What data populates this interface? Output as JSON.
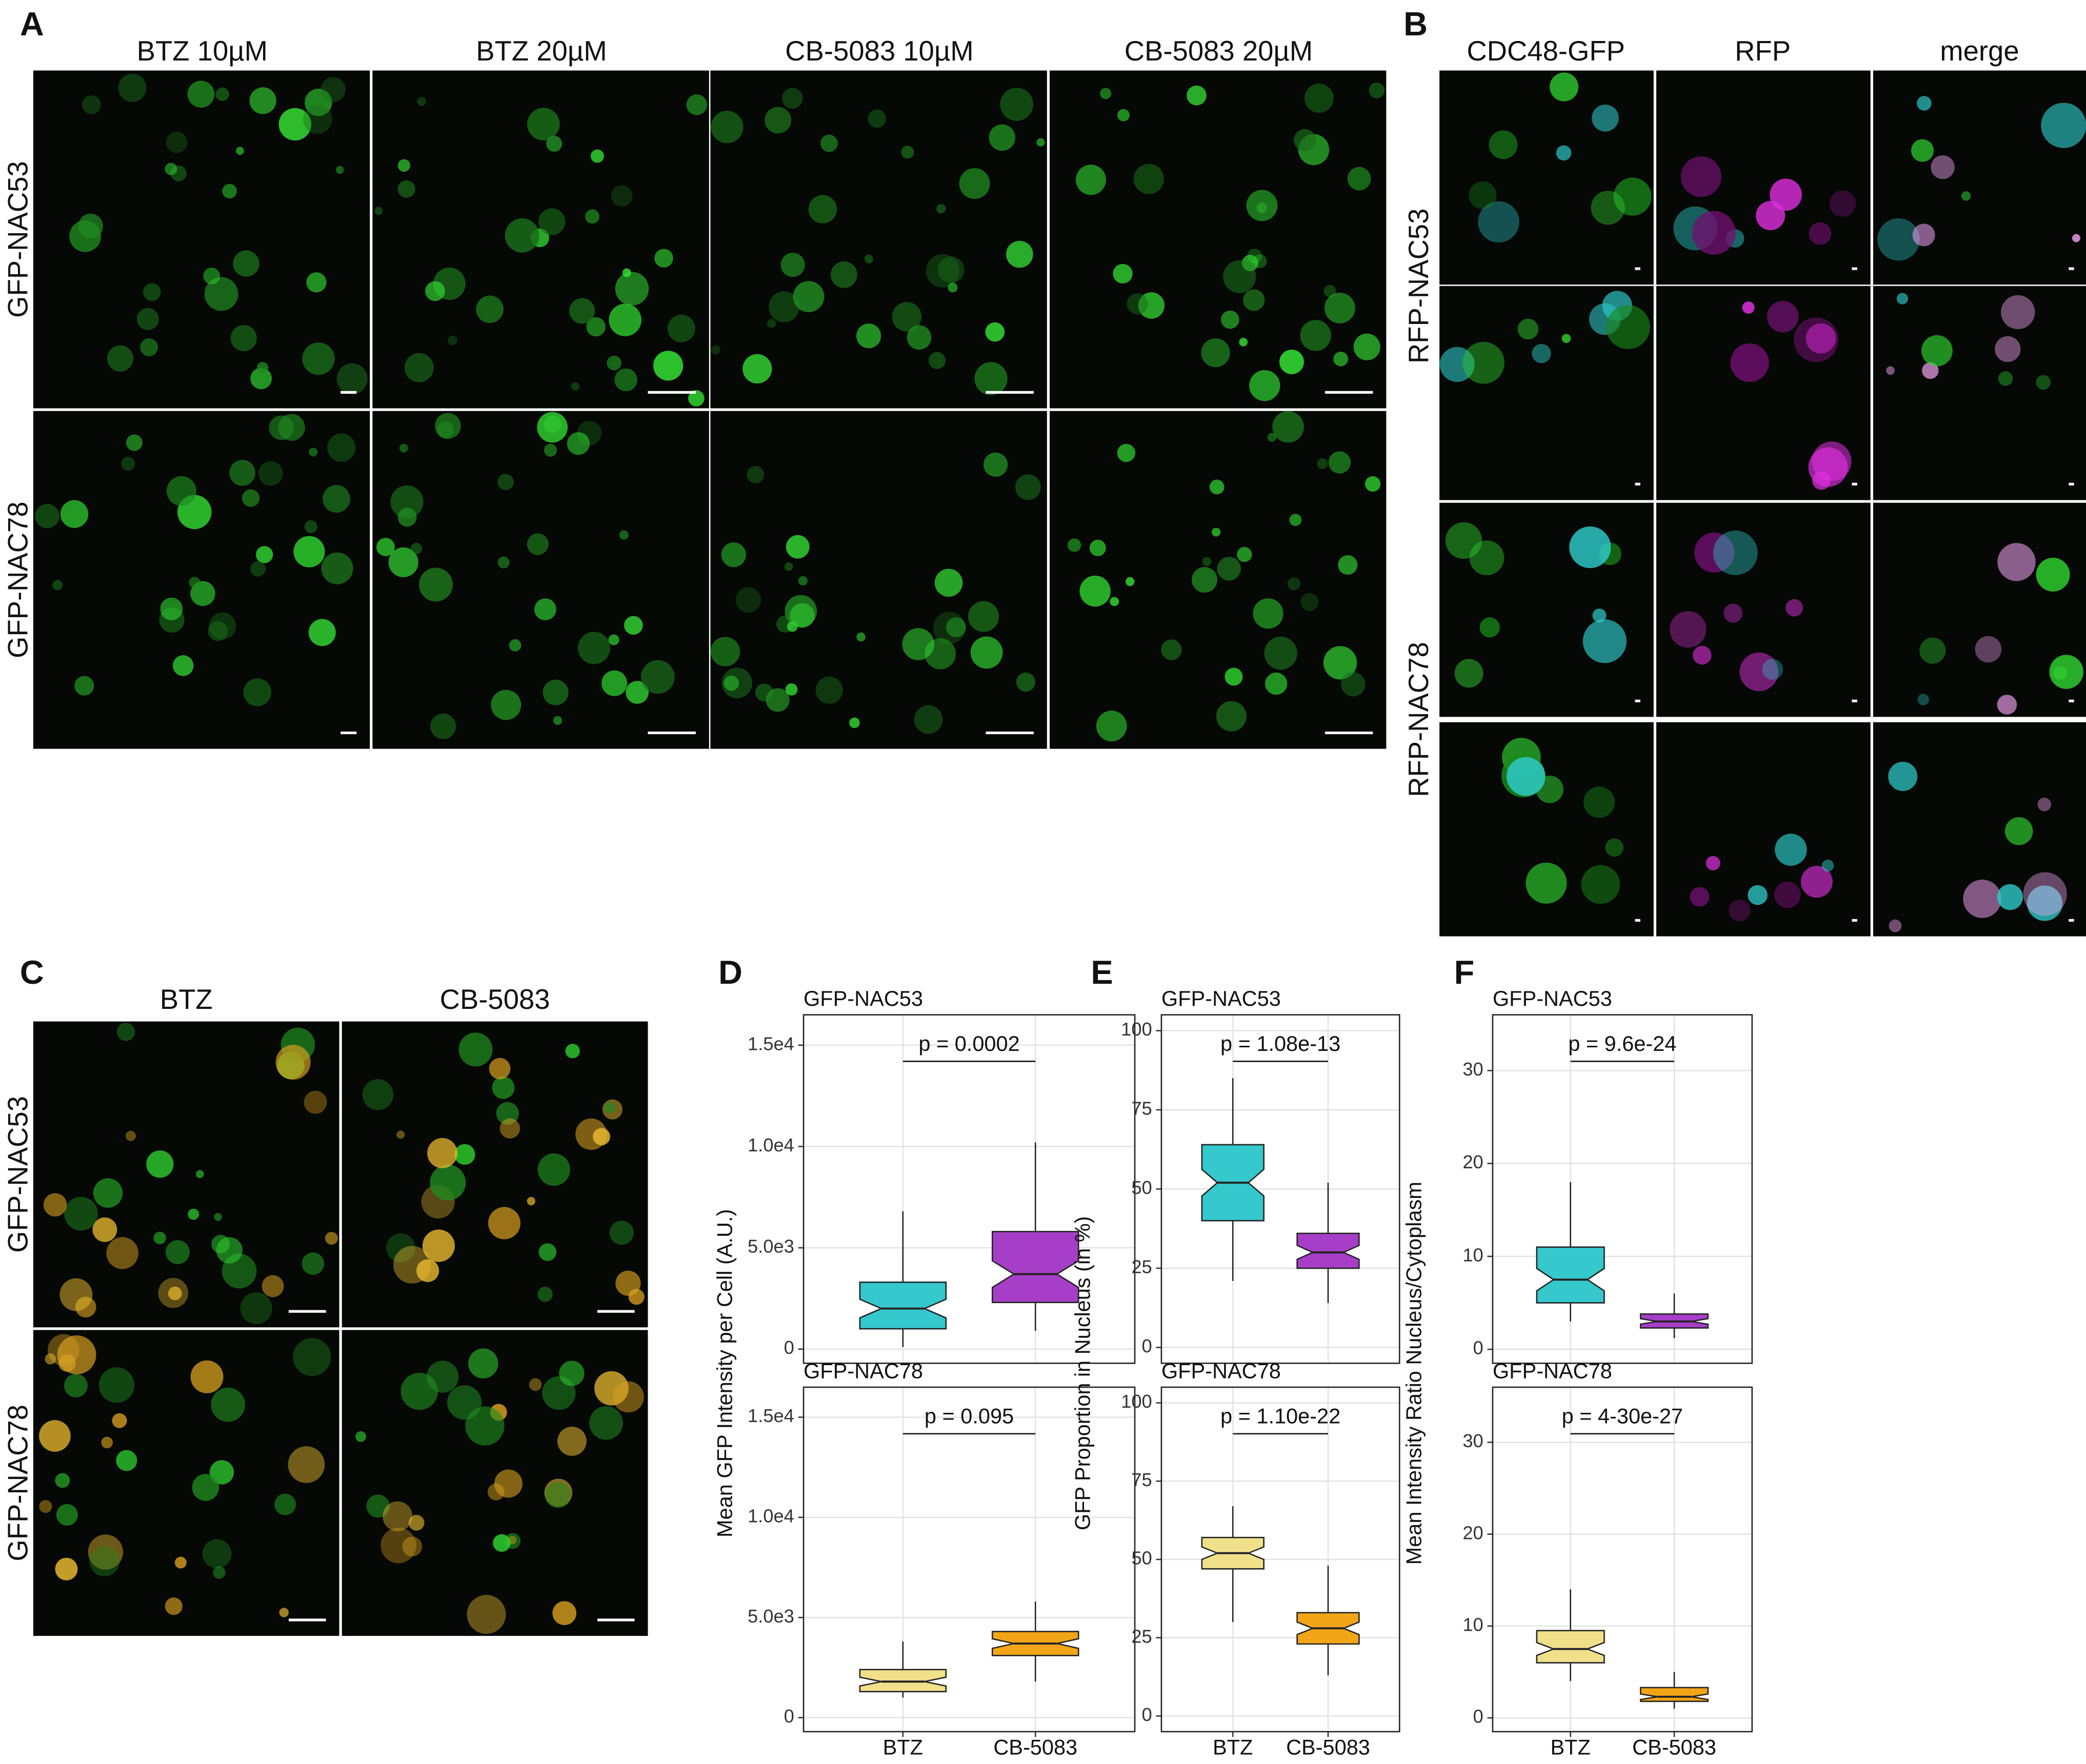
{
  "panels": {
    "A": {
      "label": "A",
      "columns": [
        "BTZ 10µM",
        "BTZ 20µM",
        "CB-5083 10µM",
        "CB-5083 20µM"
      ],
      "rows": [
        "GFP-NAC53",
        "GFP-NAC78"
      ]
    },
    "B": {
      "label": "B",
      "columns": [
        "CDC48-GFP",
        "RFP",
        "merge"
      ],
      "rows": [
        "RFP-NAC53",
        "RFP-NAC78"
      ]
    },
    "C": {
      "label": "C",
      "columns": [
        "BTZ",
        "CB-5083"
      ],
      "rows": [
        "GFP-NAC53",
        "GFP-NAC78"
      ]
    },
    "D": {
      "label": "D"
    },
    "E": {
      "label": "E"
    },
    "F": {
      "label": "F"
    }
  },
  "chart_data": [
    {
      "type": "box",
      "title": "GFP-NAC53",
      "annotation": "p = 0.0002",
      "ylabel": "Mean GFP Intensity per Cell (A.U.)",
      "ylim": [
        -700,
        16500
      ],
      "yticks": [
        0,
        {
          "value": 5000,
          "label": "5.0e3"
        },
        {
          "value": 10000,
          "label": "1.0e4"
        },
        {
          "value": 15000,
          "label": "1.5e4"
        }
      ],
      "boxes": [
        {
          "color": "#35c8cc",
          "whisker_low": 100,
          "q1": 1000,
          "median": 2000,
          "q3": 3300,
          "whisker_high": 6800
        },
        {
          "color": "#a63ec8",
          "whisker_low": 900,
          "q1": 2300,
          "median": 3700,
          "q3": 5800,
          "whisker_high": 10200
        }
      ]
    },
    {
      "type": "box",
      "title": "GFP-NAC78",
      "annotation": "p = 0.095",
      "categories": [
        "BTZ",
        "CB-5083"
      ],
      "ylim": [
        -700,
        16500
      ],
      "yticks": [
        0,
        {
          "value": 5000,
          "label": "5.0e3"
        },
        {
          "value": 10000,
          "label": "1.0e4"
        },
        {
          "value": 15000,
          "label": "1.5e4"
        }
      ],
      "boxes": [
        {
          "color": "#f0e08a",
          "whisker_low": 1000,
          "q1": 1300,
          "median": 1800,
          "q3": 2400,
          "whisker_high": 3800
        },
        {
          "color": "#f2a516",
          "whisker_low": 1800,
          "q1": 3100,
          "median": 3700,
          "q3": 4300,
          "whisker_high": 5800
        }
      ]
    },
    {
      "type": "box",
      "title": "GFP-NAC53",
      "annotation": "p = 1.08e-13",
      "ylabel": "GFP Proportion in Nucleus (in %)",
      "ylim": [
        -5,
        105
      ],
      "yticks": [
        0,
        25,
        50,
        75,
        100
      ],
      "boxes": [
        {
          "color": "#35c8cc",
          "whisker_low": 21,
          "q1": 40,
          "median": 52,
          "q3": 64,
          "whisker_high": 85
        },
        {
          "color": "#a63ec8",
          "whisker_low": 14,
          "q1": 25,
          "median": 30,
          "q3": 36,
          "whisker_high": 52
        }
      ]
    },
    {
      "type": "box",
      "title": "GFP-NAC78",
      "annotation": "p = 1.10e-22",
      "categories": [
        "BTZ",
        "CB-5083"
      ],
      "ylim": [
        -5,
        105
      ],
      "yticks": [
        0,
        25,
        50,
        75,
        100
      ],
      "boxes": [
        {
          "color": "#f0e08a",
          "whisker_low": 30,
          "q1": 47,
          "median": 52,
          "q3": 57,
          "whisker_high": 67
        },
        {
          "color": "#f2a516",
          "whisker_low": 13,
          "q1": 23,
          "median": 28,
          "q3": 33,
          "whisker_high": 48
        }
      ]
    },
    {
      "type": "box",
      "title": "GFP-NAC53",
      "annotation": "p = 9.6e-24",
      "ylabel": "Mean Intensity Ratio Nucleus/Cytoplasm",
      "ylim": [
        -1.5,
        36
      ],
      "yticks": [
        0,
        10,
        20,
        30
      ],
      "boxes": [
        {
          "color": "#35c8cc",
          "whisker_low": 3,
          "q1": 5,
          "median": 7.5,
          "q3": 11,
          "whisker_high": 18
        },
        {
          "color": "#a63ec8",
          "whisker_low": 1.2,
          "q1": 2.3,
          "median": 3,
          "q3": 3.8,
          "whisker_high": 6
        }
      ]
    },
    {
      "type": "box",
      "title": "GFP-NAC78",
      "annotation": "p = 4-30e-27",
      "categories": [
        "BTZ",
        "CB-5083"
      ],
      "ylim": [
        -1.5,
        36
      ],
      "yticks": [
        0,
        10,
        20,
        30
      ],
      "boxes": [
        {
          "color": "#f0e08a",
          "whisker_low": 4,
          "q1": 6,
          "median": 7.5,
          "q3": 9.5,
          "whisker_high": 14
        },
        {
          "color": "#f2a516",
          "whisker_low": 1,
          "q1": 1.8,
          "median": 2.3,
          "q3": 3.3,
          "whisker_high": 5
        }
      ]
    }
  ]
}
